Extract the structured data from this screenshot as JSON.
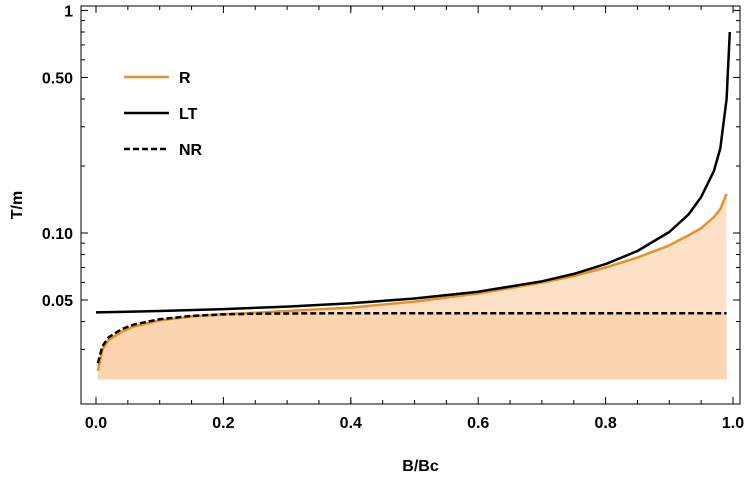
{
  "chart_data": {
    "type": "line",
    "xlabel": "B/Bc",
    "ylabel": "T/m",
    "xlim": [
      0,
      1
    ],
    "ylim": [
      0.02,
      1
    ],
    "y_scale": "log",
    "grid": false,
    "legend_position": "top-left",
    "x_ticks": [
      {
        "value": 0.0,
        "label": "0.0"
      },
      {
        "value": 0.2,
        "label": "0.2"
      },
      {
        "value": 0.4,
        "label": "0.4"
      },
      {
        "value": 0.6,
        "label": "0.6"
      },
      {
        "value": 0.8,
        "label": "0.8"
      },
      {
        "value": 1.0,
        "label": "1.0"
      }
    ],
    "y_ticks": [
      {
        "value": 0.05,
        "label": "0.05"
      },
      {
        "value": 0.1,
        "label": "0.10"
      },
      {
        "value": 0.5,
        "label": "0.50"
      },
      {
        "value": 1,
        "label": "1"
      }
    ],
    "series": [
      {
        "name": "R",
        "color": "#e8902a",
        "dash": "solid",
        "x": [
          0.003,
          0.01,
          0.02,
          0.04,
          0.06,
          0.1,
          0.15,
          0.2,
          0.25,
          0.3,
          0.4,
          0.5,
          0.6,
          0.7,
          0.75,
          0.8,
          0.85,
          0.9,
          0.93,
          0.95,
          0.97,
          0.98,
          0.99
        ],
        "y": [
          0.024,
          0.03,
          0.033,
          0.036,
          0.038,
          0.0405,
          0.0422,
          0.0432,
          0.0438,
          0.0446,
          0.0462,
          0.0492,
          0.0535,
          0.0598,
          0.064,
          0.07,
          0.0775,
          0.088,
          0.0975,
          0.105,
          0.118,
          0.128,
          0.15
        ]
      },
      {
        "name": "LT",
        "color": "#000000",
        "dash": "solid",
        "x": [
          0.0,
          0.05,
          0.1,
          0.2,
          0.3,
          0.4,
          0.5,
          0.6,
          0.7,
          0.75,
          0.8,
          0.85,
          0.9,
          0.93,
          0.95,
          0.97,
          0.98,
          0.99,
          0.995
        ],
        "y": [
          0.044,
          0.0443,
          0.0446,
          0.0455,
          0.0467,
          0.0483,
          0.0508,
          0.0545,
          0.0607,
          0.0655,
          0.0725,
          0.083,
          0.101,
          0.121,
          0.145,
          0.19,
          0.24,
          0.4,
          0.8
        ]
      },
      {
        "name": "NR",
        "color": "#000000",
        "dash": "dashed",
        "x": [
          0.003,
          0.01,
          0.02,
          0.04,
          0.06,
          0.1,
          0.15,
          0.2,
          0.25,
          0.3,
          0.4,
          0.5,
          0.6,
          0.7,
          0.8,
          0.9,
          0.95,
          0.99
        ],
        "y": [
          0.026,
          0.031,
          0.034,
          0.037,
          0.0388,
          0.041,
          0.0424,
          0.0431,
          0.0434,
          0.0435,
          0.0436,
          0.0436,
          0.0436,
          0.0436,
          0.0436,
          0.0436,
          0.0436,
          0.0436
        ]
      }
    ],
    "fill": {
      "color": "#fde1c6",
      "between": "R and NR upper band; NR and baseline lower band",
      "lower_band_color": "#fbd4b0",
      "baseline": 0.022
    }
  }
}
